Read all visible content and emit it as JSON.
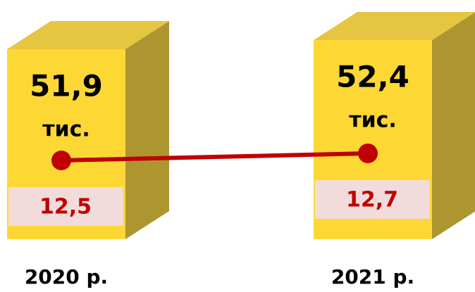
{
  "chart_data": {
    "type": "bar",
    "categories": [
      "2020 р.",
      "2021 р."
    ],
    "series": [
      {
        "values": [
          51.9,
          52.4
        ],
        "value_labels": [
          "51,9",
          "52,4"
        ],
        "unit": "тис.",
        "color": "#fdd835"
      },
      {
        "type": "line",
        "axis": "y2",
        "values": [
          12.5,
          12.7
        ],
        "value_labels": [
          "12,5",
          "12,7"
        ],
        "color": "#c00000"
      }
    ],
    "ylim": [
      41.5,
      54
    ],
    "y2lim": [
      10,
      14
    ]
  }
}
